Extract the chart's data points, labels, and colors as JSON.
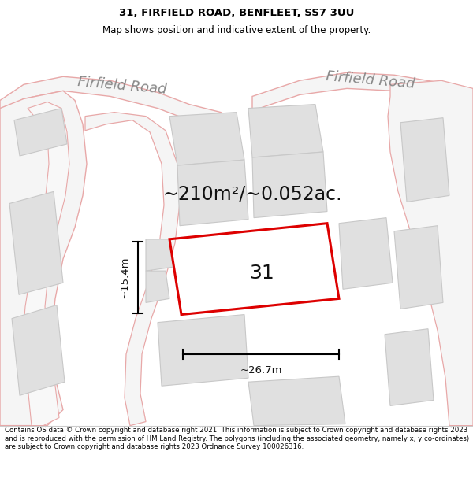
{
  "title_line1": "31, FIRFIELD ROAD, BENFLEET, SS7 3UU",
  "title_line2": "Map shows position and indicative extent of the property.",
  "area_text": "~210m²/~0.052ac.",
  "label_31": "31",
  "dim_width": "~26.7m",
  "dim_height": "~15.4m",
  "road_label_left": "Firfield Road",
  "road_label_right": "Firfield Road",
  "footer_text": "Contains OS data © Crown copyright and database right 2021. This information is subject to Crown copyright and database rights 2023 and is reproduced with the permission of HM Land Registry. The polygons (including the associated geometry, namely x, y co-ordinates) are subject to Crown copyright and database rights 2023 Ordnance Survey 100026316.",
  "map_bg": "#ffffff",
  "road_line_color": "#e8a8a8",
  "highlight_color": "#dd0000",
  "building_fill": "#e0e0e0",
  "building_edge": "#c8c8c8",
  "road_fill": "#f5f5f5",
  "title_fontsize": 9.5,
  "subtitle_fontsize": 8.5,
  "area_fontsize": 17,
  "label_fontsize": 18,
  "dim_fontsize": 9.5,
  "road_fontsize": 13,
  "footer_fontsize": 6.2
}
